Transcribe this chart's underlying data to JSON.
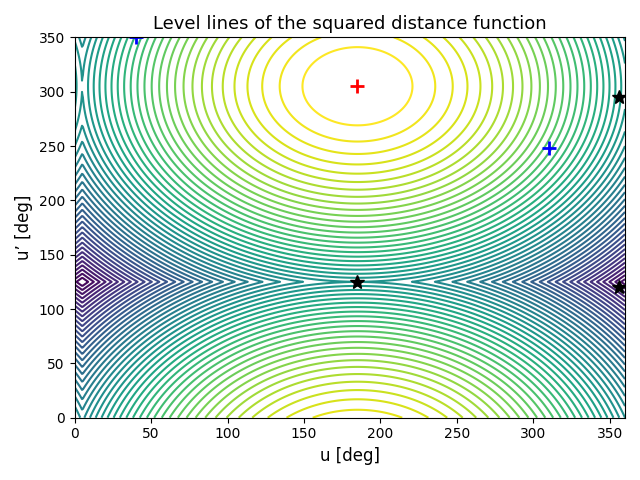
{
  "title": "Level lines of the squared distance function",
  "xlabel": "u [deg]",
  "ylabel": "u’ [deg]",
  "xlim": [
    0,
    360
  ],
  "ylim": [
    0,
    350
  ],
  "xticks": [
    0,
    50,
    100,
    150,
    200,
    250,
    300,
    350
  ],
  "yticks": [
    0,
    50,
    100,
    150,
    200,
    250,
    300,
    350
  ],
  "colormap": "viridis_r",
  "n_levels": 50,
  "minimum_point": [
    185,
    305
  ],
  "blue_plus_points": [
    [
      40,
      350
    ],
    [
      310,
      248
    ]
  ],
  "black_star_points": [
    [
      185,
      125
    ],
    [
      356,
      120
    ],
    [
      356,
      295
    ]
  ],
  "red_plus_color": "red",
  "blue_plus_color": "blue",
  "black_star_color": "black",
  "marker_size": 10,
  "figsize": [
    6.4,
    4.8
  ],
  "dpi": 100
}
